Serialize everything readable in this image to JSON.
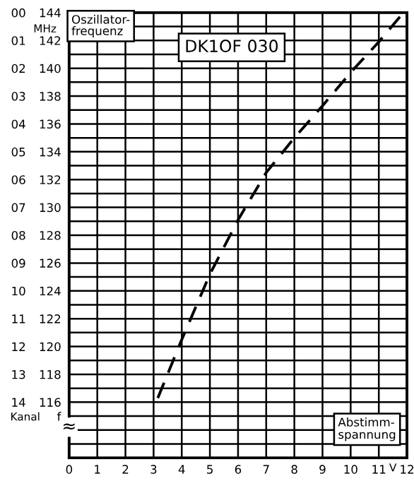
{
  "chart_data": {
    "type": "line",
    "x": [
      3.15,
      4,
      5,
      6,
      7,
      8,
      9,
      10,
      11,
      11.75
    ],
    "series": [
      {
        "color": "#000000",
        "values": [
          116.3,
          120.5,
          125.2,
          129.1,
          132.5,
          135,
          137.3,
          139.7,
          141.9,
          143.7
        ]
      }
    ],
    "line_style": "dashed",
    "marker": "none",
    "grid": true,
    "xlim": [
      0,
      12
    ],
    "xticks": [
      0,
      1,
      2,
      3,
      4,
      5,
      6,
      7,
      8,
      9,
      10,
      11,
      12
    ],
    "xlabel": "V",
    "ylabel": "f",
    "y2label": "Kanal",
    "ylim": [
      112,
      144
    ],
    "yticks": [
      {
        "value": 113,
        "label": null
      },
      {
        "value": 114,
        "label": null
      },
      {
        "value": 115,
        "label": null
      },
      116,
      {
        "value": 117,
        "label": null
      },
      118,
      {
        "value": 119,
        "label": null
      },
      120,
      {
        "value": 121,
        "label": null
      },
      122,
      {
        "value": 123,
        "label": null
      },
      124,
      {
        "value": 125,
        "label": null
      },
      126,
      {
        "value": 127,
        "label": null
      },
      128,
      {
        "value": 129,
        "label": null
      },
      130,
      {
        "value": 131,
        "label": null
      },
      132,
      {
        "value": 133,
        "label": null
      },
      134,
      {
        "value": 135,
        "label": null
      },
      136,
      {
        "value": 137,
        "label": null
      },
      138,
      {
        "value": 139,
        "label": null
      },
      140,
      {
        "value": 141,
        "label": null
      },
      142,
      {
        "value": 143,
        "label": null
      },
      144
    ],
    "y2lim": [
      16,
      0
    ],
    "y2ticks": [
      14,
      13,
      12,
      11,
      10,
      {
        "value": 9,
        "label": "09"
      },
      {
        "value": 8,
        "label": "08"
      },
      {
        "value": 7,
        "label": "07"
      },
      {
        "value": 6,
        "label": "06"
      },
      {
        "value": 5,
        "label": "05"
      },
      {
        "value": 4,
        "label": "04"
      },
      {
        "value": 3,
        "label": "03"
      },
      {
        "value": 2,
        "label": "02"
      },
      {
        "value": 1,
        "label": "01"
      },
      {
        "value": 0,
        "label": "00"
      }
    ],
    "annotations": [
      "Oszillator-\nfrequenz",
      "DK1OF 030",
      "Abstimm-\nspannung",
      "MHz",
      "≈"
    ]
  }
}
